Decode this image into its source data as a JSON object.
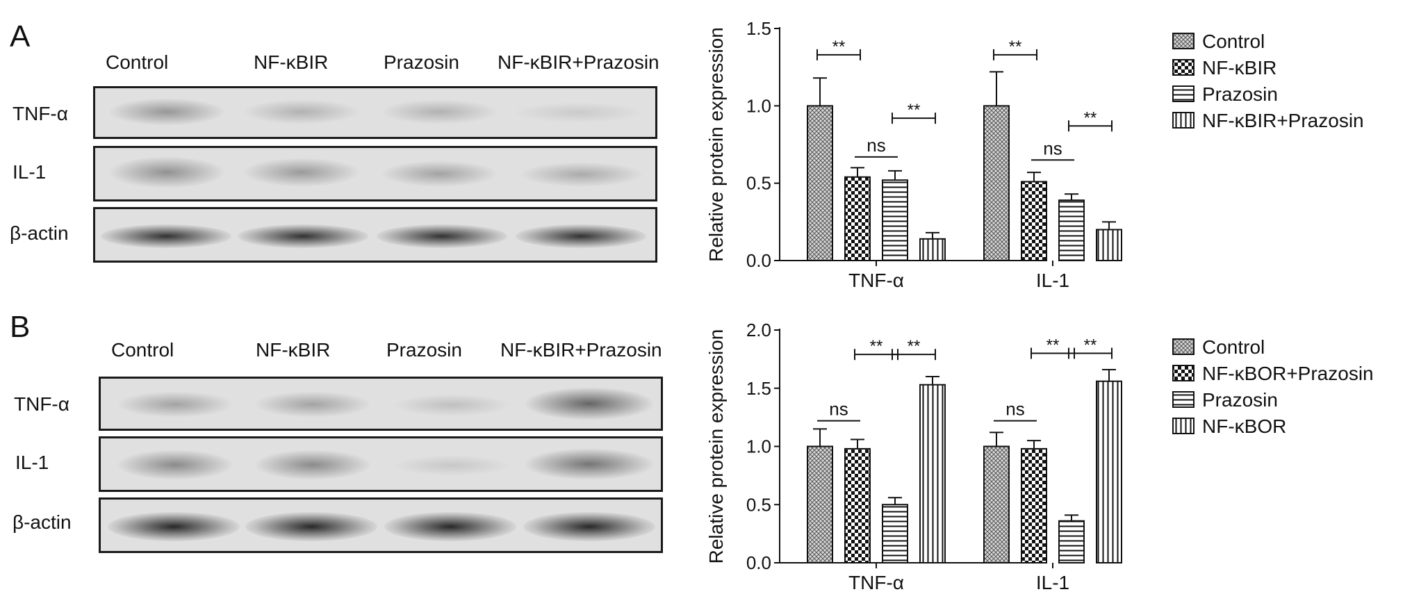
{
  "panels": [
    {
      "letter": "A",
      "lanes": [
        "Control",
        "NF-κBIR",
        "Prazosin",
        "NF-κBIR+Prazosin"
      ],
      "rows": [
        "TNF-α",
        "IL-1",
        "β-actin"
      ]
    },
    {
      "letter": "B",
      "lanes": [
        "Control",
        "NF-κBIR",
        "Prazosin",
        "NF-κBIR+Prazosin"
      ],
      "rows": [
        "TNF-α",
        "IL-1",
        "β-actin"
      ]
    }
  ],
  "chart_data": [
    {
      "type": "bar",
      "ylabel": "Relative protein expression",
      "ylim": [
        0,
        1.5
      ],
      "yticks": [
        "0.0",
        "0.5",
        "1.0",
        "1.5"
      ],
      "categories": [
        "TNF-α",
        "IL-1"
      ],
      "series": [
        {
          "name": "Control",
          "pattern": "crosshatch",
          "values": [
            1.0,
            1.0
          ],
          "errors": [
            0.18,
            0.22
          ]
        },
        {
          "name": "NF-κBIR",
          "pattern": "checker",
          "values": [
            0.54,
            0.51
          ],
          "errors": [
            0.06,
            0.06
          ]
        },
        {
          "name": "Prazosin",
          "pattern": "horizontal",
          "values": [
            0.52,
            0.39
          ],
          "errors": [
            0.06,
            0.04
          ]
        },
        {
          "name": "NF-κBIR+Prazosin",
          "pattern": "vertical",
          "values": [
            0.14,
            0.2
          ],
          "errors": [
            0.04,
            0.05
          ]
        }
      ],
      "annotations": [
        {
          "category": 0,
          "from": 0,
          "to": 1,
          "text": "**",
          "y": 1.33
        },
        {
          "category": 0,
          "from": 1,
          "to": 2,
          "text": "ns",
          "y": 0.67,
          "noticks": true
        },
        {
          "category": 0,
          "from": 2,
          "to": 3,
          "text": "**",
          "y": 0.92
        },
        {
          "category": 1,
          "from": 0,
          "to": 1,
          "text": "**",
          "y": 1.33
        },
        {
          "category": 1,
          "from": 1,
          "to": 2,
          "text": "ns",
          "y": 0.65,
          "noticks": true
        },
        {
          "category": 1,
          "from": 2,
          "to": 3,
          "text": "**",
          "y": 0.87
        }
      ],
      "legend": "right"
    },
    {
      "type": "bar",
      "ylabel": "Relative protein expression",
      "ylim": [
        0,
        2.0
      ],
      "yticks": [
        "0.0",
        "0.5",
        "1.0",
        "1.5",
        "2.0"
      ],
      "categories": [
        "TNF-α",
        "IL-1"
      ],
      "series": [
        {
          "name": "Control",
          "pattern": "crosshatch",
          "values": [
            1.0,
            1.0
          ],
          "errors": [
            0.15,
            0.12
          ]
        },
        {
          "name": "NF-κBOR+Prazosin",
          "pattern": "checker",
          "values": [
            0.98,
            0.98
          ],
          "errors": [
            0.08,
            0.07
          ]
        },
        {
          "name": "Prazosin",
          "pattern": "horizontal",
          "values": [
            0.5,
            0.36
          ],
          "errors": [
            0.06,
            0.05
          ]
        },
        {
          "name": "NF-κBOR",
          "pattern": "vertical",
          "values": [
            1.53,
            1.56
          ],
          "errors": [
            0.07,
            0.1
          ]
        }
      ],
      "annotations": [
        {
          "category": 0,
          "from": 0,
          "to": 1,
          "text": "ns",
          "y": 1.22,
          "noticks": true
        },
        {
          "category": 0,
          "from": 1,
          "to": 2,
          "text": "**",
          "y": 1.79
        },
        {
          "category": 0,
          "from": 2,
          "to": 3,
          "text": "**",
          "y": 1.79
        },
        {
          "category": 1,
          "from": 0,
          "to": 1,
          "text": "ns",
          "y": 1.22,
          "noticks": true
        },
        {
          "category": 1,
          "from": 1,
          "to": 2,
          "text": "**",
          "y": 1.8
        },
        {
          "category": 1,
          "from": 2,
          "to": 3,
          "text": "**",
          "y": 1.8
        }
      ],
      "legend": "right"
    }
  ]
}
